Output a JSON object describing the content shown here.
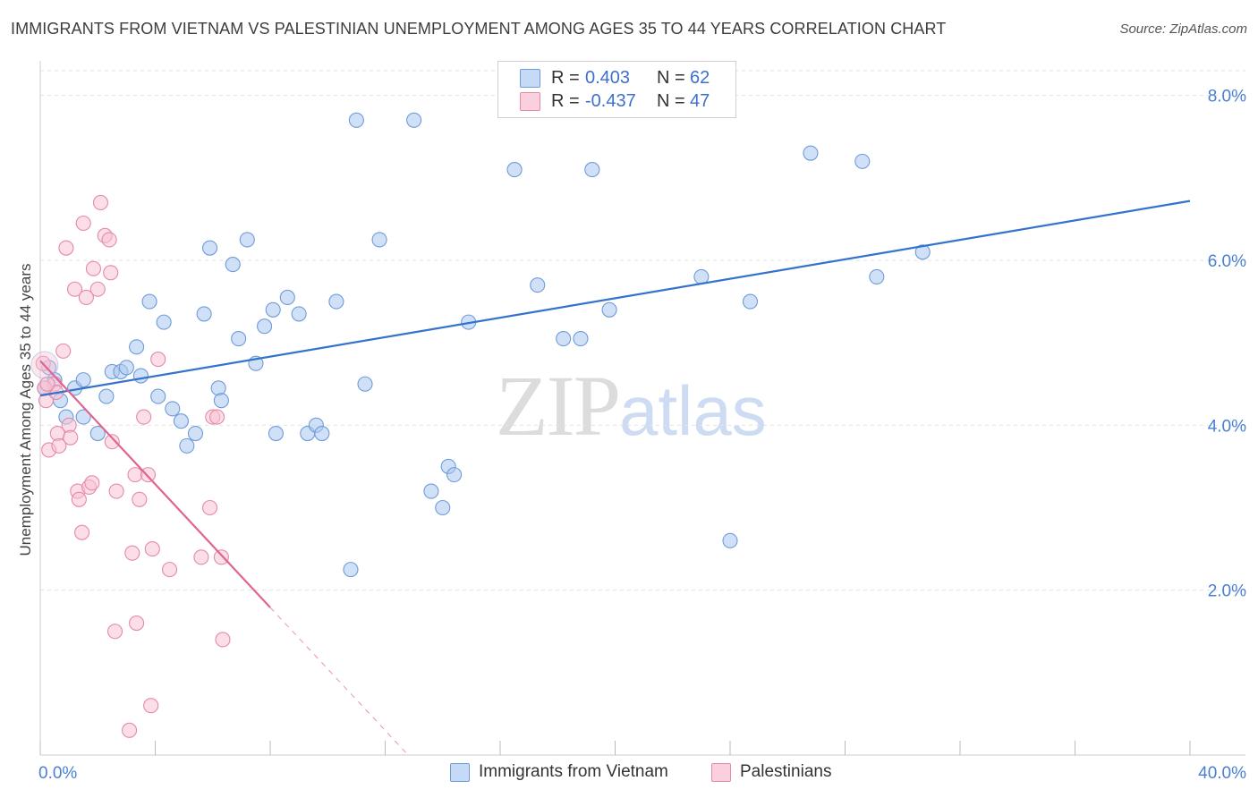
{
  "title": "IMMIGRANTS FROM VIETNAM VS PALESTINIAN UNEMPLOYMENT AMONG AGES 35 TO 44 YEARS CORRELATION CHART",
  "source": "Source: ZipAtlas.com",
  "watermark": {
    "zip": "ZIP",
    "atlas": "atlas"
  },
  "legend": {
    "rows": [
      {
        "r_label": "R =",
        "r_value": "0.403",
        "n_label": "N =",
        "n_value": "62",
        "color": "#a9c8f0",
        "border": "#6f9bd8"
      },
      {
        "r_label": "R =",
        "r_value": "-0.437",
        "n_label": "N =",
        "n_value": "47",
        "color": "#f8c3d4",
        "border": "#e48aa8"
      }
    ]
  },
  "bottom_legend": {
    "vietnam": "Immigrants from Vietnam",
    "palestinians": "Palestinians"
  },
  "colors": {
    "blue_fill": "#a9c8f0",
    "blue_stroke": "#6f9bd8",
    "blue_line": "#3373cc",
    "pink_fill": "#f8c3d4",
    "pink_stroke": "#e48aa8",
    "pink_line": "#e0648f",
    "grid": "#e2e2e2",
    "tick_label": "#4a7fd4"
  },
  "chart_data": {
    "type": "scatter",
    "title": "IMMIGRANTS FROM VIETNAM VS PALESTINIAN UNEMPLOYMENT AMONG AGES 35 TO 44 YEARS CORRELATION CHART",
    "xlabel": "",
    "ylabel": "Unemployment Among Ages 35 to 44 years",
    "xlim": [
      0,
      40
    ],
    "ylim": [
      0,
      8.3
    ],
    "x_tick_labels": [
      "0.0%",
      "40.0%"
    ],
    "y_ticks": [
      2,
      4,
      6,
      8
    ],
    "y_tick_labels": [
      "2.0%",
      "4.0%",
      "6.0%",
      "8.0%"
    ],
    "grid": true,
    "legend_position": "top-center",
    "series": [
      {
        "name": "Immigrants from Vietnam",
        "points": [
          [
            0.15,
            4.45
          ],
          [
            0.3,
            4.7
          ],
          [
            0.5,
            4.55
          ],
          [
            0.7,
            4.3
          ],
          [
            0.9,
            4.1
          ],
          [
            1.2,
            4.45
          ],
          [
            1.5,
            4.55
          ],
          [
            1.5,
            4.1
          ],
          [
            2.0,
            3.9
          ],
          [
            2.3,
            4.35
          ],
          [
            2.5,
            4.65
          ],
          [
            2.8,
            4.65
          ],
          [
            3.0,
            4.7
          ],
          [
            3.35,
            4.95
          ],
          [
            3.5,
            4.6
          ],
          [
            3.8,
            5.5
          ],
          [
            4.1,
            4.35
          ],
          [
            4.3,
            5.25
          ],
          [
            4.6,
            4.2
          ],
          [
            4.9,
            4.05
          ],
          [
            5.1,
            3.75
          ],
          [
            5.4,
            3.9
          ],
          [
            5.7,
            5.35
          ],
          [
            5.9,
            6.15
          ],
          [
            6.2,
            4.45
          ],
          [
            6.3,
            4.3
          ],
          [
            6.7,
            5.95
          ],
          [
            6.9,
            5.05
          ],
          [
            7.2,
            6.25
          ],
          [
            7.5,
            4.75
          ],
          [
            7.8,
            5.2
          ],
          [
            8.1,
            5.4
          ],
          [
            8.2,
            3.9
          ],
          [
            8.6,
            5.55
          ],
          [
            9.0,
            5.35
          ],
          [
            9.3,
            3.9
          ],
          [
            9.6,
            4.0
          ],
          [
            9.8,
            3.9
          ],
          [
            10.3,
            5.5
          ],
          [
            10.8,
            2.25
          ],
          [
            11.0,
            7.7
          ],
          [
            11.3,
            4.5
          ],
          [
            11.8,
            6.25
          ],
          [
            13.0,
            7.7
          ],
          [
            13.6,
            3.2
          ],
          [
            14.0,
            3.0
          ],
          [
            14.2,
            3.5
          ],
          [
            14.4,
            3.4
          ],
          [
            14.9,
            5.25
          ],
          [
            16.5,
            7.1
          ],
          [
            17.3,
            5.7
          ],
          [
            18.2,
            5.05
          ],
          [
            18.8,
            5.05
          ],
          [
            19.2,
            7.1
          ],
          [
            19.8,
            5.4
          ],
          [
            23.0,
            5.8
          ],
          [
            24.0,
            2.6
          ],
          [
            24.7,
            5.5
          ],
          [
            26.8,
            7.3
          ],
          [
            28.6,
            7.2
          ],
          [
            29.1,
            5.8
          ],
          [
            30.7,
            6.1
          ]
        ]
      },
      {
        "name": "Palestinians",
        "points": [
          [
            0.1,
            4.75
          ],
          [
            0.2,
            4.3
          ],
          [
            0.3,
            3.7
          ],
          [
            0.5,
            4.5
          ],
          [
            0.55,
            4.4
          ],
          [
            0.6,
            3.9
          ],
          [
            0.65,
            3.75
          ],
          [
            0.8,
            4.9
          ],
          [
            0.9,
            6.15
          ],
          [
            1.0,
            4.0
          ],
          [
            1.05,
            3.85
          ],
          [
            1.2,
            5.65
          ],
          [
            1.3,
            3.2
          ],
          [
            1.35,
            3.1
          ],
          [
            1.45,
            2.7
          ],
          [
            1.5,
            6.45
          ],
          [
            1.6,
            5.55
          ],
          [
            1.7,
            3.25
          ],
          [
            1.8,
            3.3
          ],
          [
            1.85,
            5.9
          ],
          [
            2.0,
            5.65
          ],
          [
            2.1,
            6.7
          ],
          [
            2.25,
            6.3
          ],
          [
            2.4,
            6.25
          ],
          [
            2.45,
            5.85
          ],
          [
            2.5,
            3.8
          ],
          [
            2.6,
            1.5
          ],
          [
            2.65,
            3.2
          ],
          [
            3.1,
            0.3
          ],
          [
            3.2,
            2.45
          ],
          [
            3.3,
            3.4
          ],
          [
            3.35,
            1.6
          ],
          [
            3.45,
            3.1
          ],
          [
            3.6,
            4.1
          ],
          [
            3.75,
            3.4
          ],
          [
            3.85,
            0.6
          ],
          [
            3.9,
            2.5
          ],
          [
            4.1,
            4.8
          ],
          [
            4.5,
            2.25
          ],
          [
            5.6,
            2.4
          ],
          [
            5.9,
            3.0
          ],
          [
            6.0,
            4.1
          ],
          [
            6.15,
            4.1
          ],
          [
            6.3,
            2.4
          ],
          [
            6.35,
            1.4
          ],
          [
            0.15,
            4.45
          ],
          [
            0.25,
            4.5
          ]
        ]
      }
    ],
    "trendlines": [
      {
        "series": "Immigrants from Vietnam",
        "from": [
          0,
          4.36
        ],
        "to": [
          40,
          6.72
        ]
      },
      {
        "series": "Palestinians",
        "from": [
          0,
          4.78
        ],
        "to": [
          8,
          1.79
        ],
        "dashed_to": [
          12.8,
          0.0
        ]
      }
    ]
  }
}
